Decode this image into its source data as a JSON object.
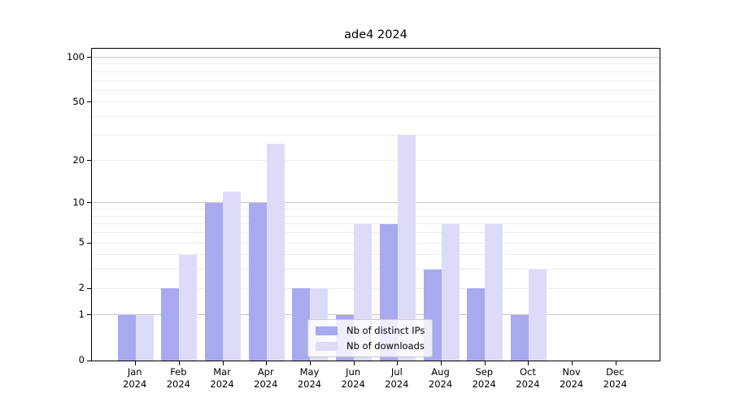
{
  "chart_data": {
    "type": "bar",
    "title": "ade4 2024",
    "categories": [
      "Jan",
      "Feb",
      "Mar",
      "Apr",
      "May",
      "Jun",
      "Jul",
      "Aug",
      "Sep",
      "Oct",
      "Nov",
      "Dec"
    ],
    "year_label": "2024",
    "series": [
      {
        "name": "Nb of distinct IPs",
        "color": "#a9a9f0",
        "values": [
          1,
          2,
          10,
          10,
          2,
          1,
          7,
          3,
          2,
          1,
          0,
          0
        ]
      },
      {
        "name": "Nb of downloads",
        "color": "#dcdcf9",
        "values": [
          1,
          4,
          12,
          26,
          2,
          7,
          30,
          7,
          7,
          3,
          0,
          0
        ]
      }
    ],
    "yscale": "log1p",
    "ylim": [
      0,
      114
    ],
    "y_tick_labels": [
      0,
      1,
      2,
      5,
      10,
      20,
      50,
      100
    ],
    "major_gridlines": [
      1,
      10,
      100
    ],
    "minor_gridlines": [
      2,
      3,
      4,
      5,
      6,
      7,
      8,
      9,
      20,
      30,
      40,
      50,
      60,
      70,
      80,
      90
    ],
    "legend_position": "lower center",
    "grid": "on",
    "colors": {
      "grid_minor": "#ededed",
      "grid_major": "#c8c8c8",
      "spine": "#000000",
      "legend_border": "#cccccc",
      "legend_bg": "rgba(255,255,255,0.8)",
      "background": "#ffffff",
      "text": "#000000"
    }
  }
}
